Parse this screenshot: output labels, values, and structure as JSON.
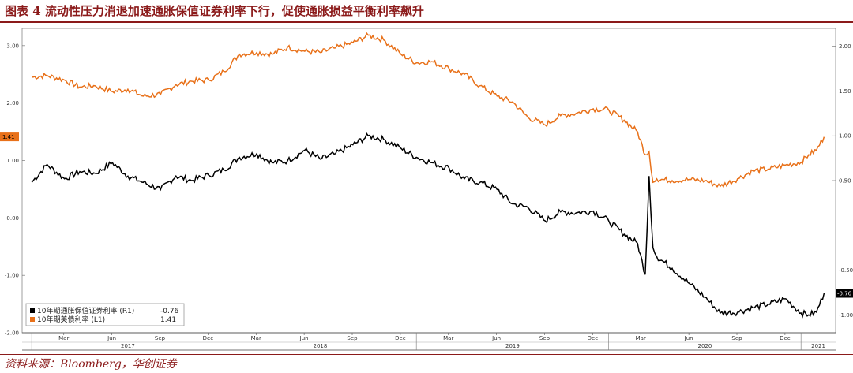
{
  "header": {
    "title": "图表 4  流动性压力消退加速通胀保值证券利率下行，促使通胀损益平衡利率飙升"
  },
  "footer": {
    "source": "资料来源：Bloomberg，华创证券"
  },
  "colors": {
    "orange": "#E8711A",
    "black": "#000000",
    "accent": "#8B1A1A"
  },
  "chart_data": {
    "type": "line",
    "title": "",
    "left_axis": {
      "ticks": [
        "3.00",
        "2.00",
        "1.00",
        "0.00",
        "-1.00",
        "-2.00"
      ],
      "range": [
        -2.0,
        3.3
      ]
    },
    "right_axis": {
      "ticks": [
        "2.00",
        "1.50",
        "1.00",
        "0.50",
        "-0.50",
        "-1.00"
      ],
      "range": [
        -1.2,
        2.2
      ]
    },
    "x_months": [
      "Mar",
      "Jun",
      "Sep",
      "Dec",
      "Mar",
      "Jun",
      "Sep",
      "Dec",
      "Mar",
      "Jun",
      "Sep",
      "Dec",
      "Mar",
      "Jun",
      "Sep",
      "Dec"
    ],
    "x_years": [
      "2017",
      "2018",
      "2019",
      "2020",
      "2021"
    ],
    "legend_position": "bottom-left",
    "last_value_labels": {
      "left": "1.41",
      "right": "-0.76"
    },
    "series": [
      {
        "name": "10年期通胀保值证券利率 (R1)",
        "last": "-0.76",
        "axis": "right",
        "color": "#000000",
        "x": [
          2017.0,
          2017.08,
          2017.17,
          2017.25,
          2017.33,
          2017.42,
          2017.5,
          2017.58,
          2017.67,
          2017.75,
          2017.83,
          2017.92,
          2018.0,
          2018.08,
          2018.17,
          2018.25,
          2018.33,
          2018.42,
          2018.5,
          2018.58,
          2018.67,
          2018.75,
          2018.83,
          2018.92,
          2019.0,
          2019.08,
          2019.17,
          2019.25,
          2019.33,
          2019.42,
          2019.5,
          2019.58,
          2019.67,
          2019.75,
          2019.83,
          2019.92,
          2020.0,
          2020.08,
          2020.15,
          2020.19,
          2020.21,
          2020.23,
          2020.25,
          2020.33,
          2020.42,
          2020.5,
          2020.58,
          2020.67,
          2020.75,
          2020.83,
          2020.92,
          2021.0,
          2021.04,
          2021.08,
          2021.12
        ],
        "values": [
          0.48,
          0.68,
          0.52,
          0.6,
          0.58,
          0.7,
          0.55,
          0.48,
          0.4,
          0.55,
          0.5,
          0.56,
          0.62,
          0.76,
          0.8,
          0.7,
          0.72,
          0.84,
          0.74,
          0.8,
          0.9,
          1.0,
          0.96,
          0.86,
          0.76,
          0.7,
          0.64,
          0.52,
          0.48,
          0.4,
          0.24,
          0.2,
          0.05,
          0.15,
          0.14,
          0.16,
          0.05,
          -0.1,
          -0.2,
          -0.55,
          0.55,
          -0.25,
          -0.35,
          -0.48,
          -0.65,
          -0.8,
          -0.98,
          -0.97,
          -0.92,
          -0.88,
          -0.82,
          -0.98,
          -1.0,
          -0.97,
          -0.76
        ]
      },
      {
        "name": "10年期美债利率 (L1)",
        "last": "1.41",
        "axis": "left",
        "color": "#E8711A",
        "x": [
          2017.0,
          2017.08,
          2017.17,
          2017.25,
          2017.33,
          2017.42,
          2017.5,
          2017.58,
          2017.67,
          2017.75,
          2017.83,
          2017.92,
          2018.0,
          2018.08,
          2018.17,
          2018.25,
          2018.33,
          2018.42,
          2018.5,
          2018.58,
          2018.67,
          2018.75,
          2018.83,
          2018.92,
          2019.0,
          2019.08,
          2019.17,
          2019.25,
          2019.33,
          2019.42,
          2019.5,
          2019.58,
          2019.67,
          2019.75,
          2019.83,
          2019.92,
          2020.0,
          2020.08,
          2020.15,
          2020.19,
          2020.21,
          2020.23,
          2020.25,
          2020.33,
          2020.42,
          2020.5,
          2020.58,
          2020.67,
          2020.75,
          2020.83,
          2020.92,
          2021.0,
          2021.04,
          2021.08,
          2021.12
        ],
        "values": [
          2.45,
          2.48,
          2.4,
          2.28,
          2.3,
          2.2,
          2.24,
          2.12,
          2.15,
          2.32,
          2.38,
          2.4,
          2.55,
          2.85,
          2.88,
          2.85,
          2.97,
          2.9,
          2.88,
          2.96,
          3.05,
          3.18,
          3.1,
          2.85,
          2.7,
          2.72,
          2.6,
          2.5,
          2.3,
          2.12,
          2.02,
          1.75,
          1.62,
          1.78,
          1.82,
          1.9,
          1.88,
          1.7,
          1.5,
          1.1,
          1.15,
          0.62,
          0.68,
          0.65,
          0.67,
          0.65,
          0.55,
          0.68,
          0.82,
          0.85,
          0.92,
          0.97,
          1.1,
          1.18,
          1.41
        ]
      }
    ]
  }
}
